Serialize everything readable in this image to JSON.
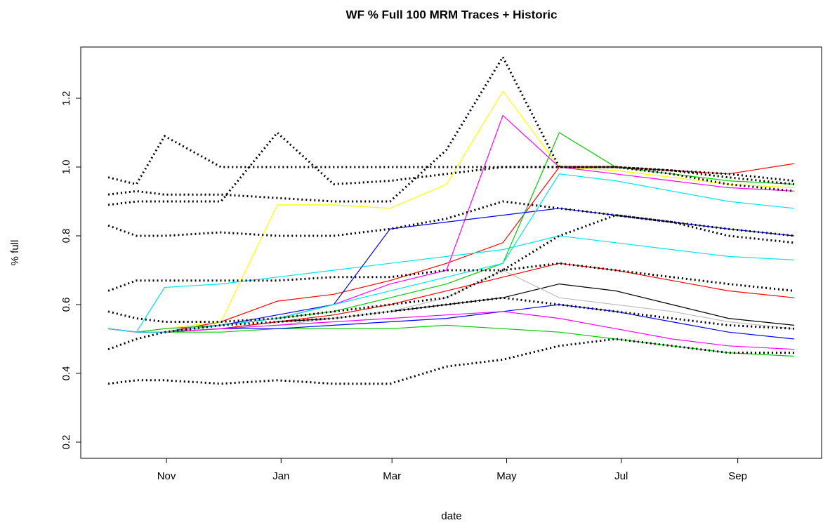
{
  "chart_data": {
    "type": "line",
    "title": "WF % Full 100 MRM Traces + Historic",
    "x_label": "date",
    "y_label": "% full",
    "xlim": [
      -14.6,
      379.6
    ],
    "ylim": [
      0.153,
      1.349
    ],
    "xticks": [
      {
        "value": 31,
        "label": "Nov"
      },
      {
        "value": 92,
        "label": "Jan"
      },
      {
        "value": 151,
        "label": "Mar"
      },
      {
        "value": 212,
        "label": "May"
      },
      {
        "value": 273,
        "label": "Jul"
      },
      {
        "value": 335,
        "label": "Sep"
      }
    ],
    "yticks": [
      0.2,
      0.4,
      0.6,
      0.8,
      {
        "value": 1,
        "label": "1.0"
      },
      1.2
    ],
    "x": [
      0,
      15,
      30,
      60,
      90,
      120,
      150,
      180,
      210,
      240,
      270,
      300,
      330,
      365
    ],
    "series": [
      {
        "color": "#ff0000",
        "style": "solid",
        "values": [
          0.53,
          0.52,
          0.52,
          0.55,
          0.61,
          0.63,
          0.67,
          0.72,
          0.78,
          1.0,
          1.0,
          0.99,
          0.98,
          1.01
        ]
      },
      {
        "color": "#00cd00",
        "style": "solid",
        "values": [
          0.53,
          0.52,
          0.52,
          0.52,
          0.53,
          0.53,
          0.53,
          0.54,
          0.53,
          0.52,
          0.5,
          0.48,
          0.46,
          0.45
        ]
      },
      {
        "color": "#0000ff",
        "style": "solid",
        "values": [
          0.53,
          0.52,
          0.52,
          0.53,
          0.53,
          0.54,
          0.55,
          0.56,
          0.58,
          0.6,
          0.58,
          0.55,
          0.52,
          0.5
        ]
      },
      {
        "color": "#00e5ee",
        "style": "solid",
        "values": [
          0.53,
          0.52,
          0.65,
          0.66,
          0.68,
          0.7,
          0.72,
          0.74,
          0.76,
          0.8,
          0.78,
          0.76,
          0.74,
          0.73
        ]
      },
      {
        "color": "#ff00ff",
        "style": "solid",
        "values": [
          0.53,
          0.52,
          0.53,
          0.54,
          0.56,
          0.6,
          0.66,
          0.7,
          1.15,
          1.0,
          0.98,
          0.96,
          0.94,
          0.93
        ]
      },
      {
        "color": "#ffff00",
        "style": "solid",
        "values": [
          0.53,
          0.52,
          0.53,
          0.55,
          0.89,
          0.89,
          0.88,
          0.95,
          1.22,
          1.0,
          0.99,
          0.97,
          0.95,
          0.94
        ]
      },
      {
        "color": "#000000",
        "style": "solid",
        "values": [
          0.53,
          0.52,
          0.52,
          0.53,
          0.55,
          0.56,
          0.58,
          0.6,
          0.62,
          0.66,
          0.64,
          0.6,
          0.56,
          0.54
        ]
      },
      {
        "color": "#bebebe",
        "style": "solid",
        "values": [
          0.53,
          0.52,
          0.52,
          0.53,
          0.54,
          0.56,
          0.58,
          0.62,
          0.7,
          0.62,
          0.6,
          0.58,
          0.55,
          0.53
        ]
      },
      {
        "color": "#00cd00",
        "style": "solid",
        "values": [
          0.53,
          0.52,
          0.53,
          0.54,
          0.56,
          0.58,
          0.62,
          0.66,
          0.72,
          1.1,
          1.0,
          0.98,
          0.96,
          0.95
        ]
      },
      {
        "color": "#0000ff",
        "style": "solid",
        "values": [
          0.53,
          0.52,
          0.52,
          0.54,
          0.57,
          0.6,
          0.82,
          0.84,
          0.86,
          0.88,
          0.86,
          0.84,
          0.82,
          0.8
        ]
      },
      {
        "color": "#ff0000",
        "style": "solid",
        "values": [
          0.53,
          0.52,
          0.52,
          0.53,
          0.55,
          0.57,
          0.6,
          0.64,
          0.68,
          0.72,
          0.7,
          0.67,
          0.64,
          0.62
        ]
      },
      {
        "color": "#ff00ff",
        "style": "solid",
        "values": [
          0.53,
          0.52,
          0.52,
          0.53,
          0.54,
          0.55,
          0.56,
          0.57,
          0.58,
          0.56,
          0.53,
          0.5,
          0.48,
          0.47
        ]
      },
      {
        "color": "#00e5ee",
        "style": "solid",
        "values": [
          0.53,
          0.52,
          0.52,
          0.54,
          0.56,
          0.6,
          0.64,
          0.68,
          0.72,
          0.98,
          0.96,
          0.93,
          0.9,
          0.88
        ]
      },
      {
        "color": "#000000",
        "style": "dotted",
        "values": [
          0.37,
          0.38,
          0.38,
          0.37,
          0.38,
          0.37,
          0.37,
          0.42,
          0.44,
          0.48,
          0.5,
          0.48,
          0.46,
          0.46
        ]
      },
      {
        "color": "#000000",
        "style": "dotted",
        "values": [
          0.97,
          0.95,
          1.09,
          1.0,
          1.0,
          1.0,
          1.0,
          1.0,
          1.0,
          1.0,
          1.0,
          0.99,
          0.98,
          0.96
        ]
      },
      {
        "color": "#000000",
        "style": "dotted",
        "values": [
          0.92,
          0.93,
          0.92,
          0.92,
          0.91,
          0.9,
          0.9,
          1.05,
          1.32,
          1.0,
          1.0,
          0.99,
          0.97,
          0.95
        ]
      },
      {
        "color": "#000000",
        "style": "dotted",
        "values": [
          0.83,
          0.8,
          0.8,
          0.81,
          0.8,
          0.8,
          0.82,
          0.85,
          0.9,
          0.88,
          0.86,
          0.84,
          0.82,
          0.8
        ]
      },
      {
        "color": "#000000",
        "style": "dotted",
        "values": [
          0.64,
          0.67,
          0.67,
          0.67,
          0.67,
          0.68,
          0.68,
          0.7,
          0.7,
          0.72,
          0.7,
          0.68,
          0.66,
          0.64
        ]
      },
      {
        "color": "#000000",
        "style": "dotted",
        "values": [
          0.47,
          0.5,
          0.52,
          0.54,
          0.55,
          0.56,
          0.58,
          0.6,
          0.62,
          0.6,
          0.58,
          0.56,
          0.54,
          0.53
        ]
      },
      {
        "color": "#000000",
        "style": "dotted",
        "values": [
          0.89,
          0.9,
          0.9,
          0.9,
          1.1,
          0.95,
          0.96,
          0.98,
          1.0,
          1.0,
          1.0,
          0.98,
          0.95,
          0.93
        ]
      },
      {
        "color": "#000000",
        "style": "dotted",
        "values": [
          0.58,
          0.56,
          0.55,
          0.55,
          0.56,
          0.58,
          0.6,
          0.62,
          0.7,
          0.8,
          0.86,
          0.84,
          0.8,
          0.78
        ]
      }
    ]
  }
}
